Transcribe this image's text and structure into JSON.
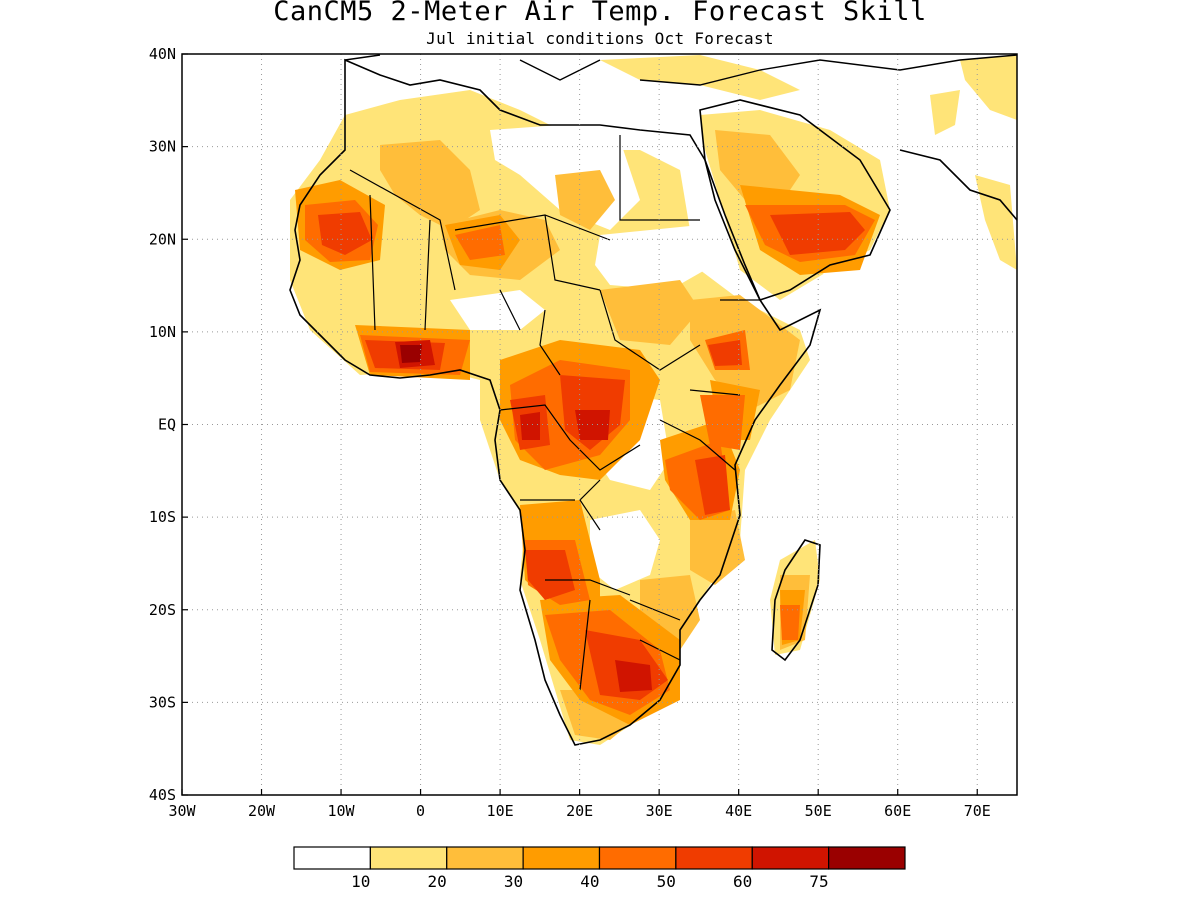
{
  "header": {
    "title": "CanCM5 2-Meter Air Temp. Forecast Skill",
    "subtitle": "Jul initial conditions   Oct Forecast"
  },
  "map": {
    "lon_range": [
      -30,
      75
    ],
    "lat_range": [
      -40,
      40
    ],
    "lon_ticks": [
      {
        "value": -30,
        "label": "30W"
      },
      {
        "value": -20,
        "label": "20W"
      },
      {
        "value": -10,
        "label": "10W"
      },
      {
        "value": 0,
        "label": "0"
      },
      {
        "value": 10,
        "label": "10E"
      },
      {
        "value": 20,
        "label": "20E"
      },
      {
        "value": 30,
        "label": "30E"
      },
      {
        "value": 40,
        "label": "40E"
      },
      {
        "value": 50,
        "label": "50E"
      },
      {
        "value": 60,
        "label": "60E"
      },
      {
        "value": 70,
        "label": "70E"
      }
    ],
    "lat_ticks": [
      {
        "value": 40,
        "label": "40N"
      },
      {
        "value": 30,
        "label": "30N"
      },
      {
        "value": 20,
        "label": "20N"
      },
      {
        "value": 10,
        "label": "10N"
      },
      {
        "value": 0,
        "label": "EQ"
      },
      {
        "value": -10,
        "label": "10S"
      },
      {
        "value": -20,
        "label": "20S"
      },
      {
        "value": -30,
        "label": "30S"
      },
      {
        "value": -40,
        "label": "40S"
      }
    ],
    "grid": "dotted"
  },
  "colorbar": {
    "colors": [
      "#ffffff",
      "#ffe478",
      "#ffbe3a",
      "#ff9c00",
      "#ff6c00",
      "#f03c00",
      "#d01400",
      "#9a0000"
    ],
    "labels": [
      "10",
      "20",
      "30",
      "40",
      "50",
      "60",
      "75"
    ]
  }
}
